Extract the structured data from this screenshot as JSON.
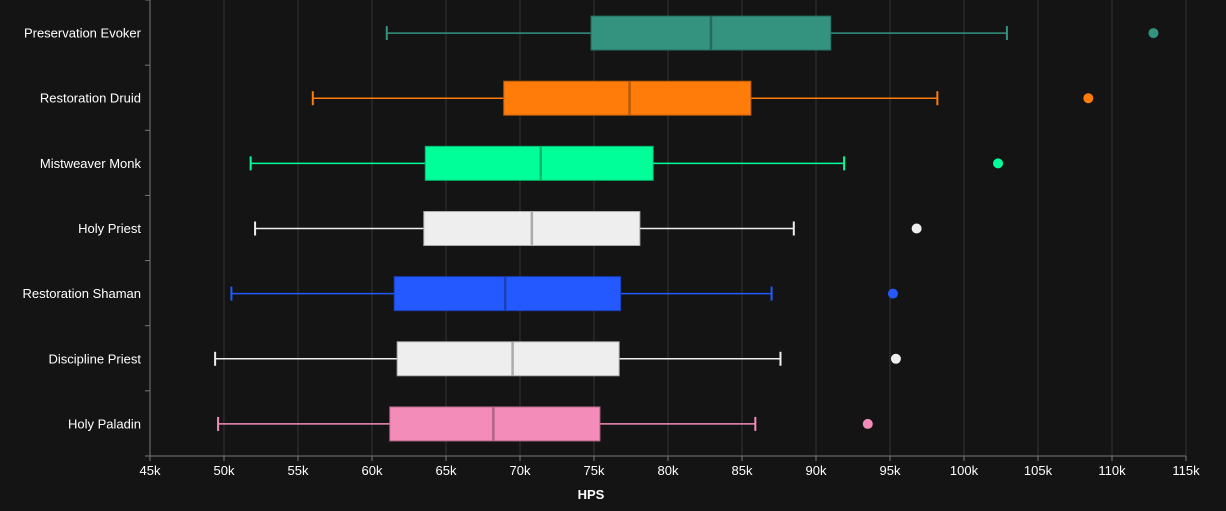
{
  "chart_data": {
    "type": "box",
    "title": "",
    "xlabel": "HPS",
    "ylabel": "",
    "xlim": [
      45000,
      115000
    ],
    "x_ticks": [
      {
        "value": 45000,
        "label": "45k"
      },
      {
        "value": 50000,
        "label": "50k"
      },
      {
        "value": 55000,
        "label": "55k"
      },
      {
        "value": 60000,
        "label": "60k"
      },
      {
        "value": 65000,
        "label": "65k"
      },
      {
        "value": 70000,
        "label": "70k"
      },
      {
        "value": 75000,
        "label": "75k"
      },
      {
        "value": 80000,
        "label": "80k"
      },
      {
        "value": 85000,
        "label": "85k"
      },
      {
        "value": 90000,
        "label": "90k"
      },
      {
        "value": 95000,
        "label": "95k"
      },
      {
        "value": 100000,
        "label": "100k"
      },
      {
        "value": 105000,
        "label": "105k"
      },
      {
        "value": 110000,
        "label": "110k"
      },
      {
        "value": 115000,
        "label": "115k"
      }
    ],
    "grid": true,
    "series": [
      {
        "name": "Preservation Evoker",
        "color": "#33937f",
        "whisker_low": 61000,
        "q1": 74800,
        "median": 82900,
        "q3": 91000,
        "whisker_high": 102900,
        "outlier": 112800
      },
      {
        "name": "Restoration Druid",
        "color": "#ff7c0a",
        "whisker_low": 56000,
        "q1": 68900,
        "median": 77400,
        "q3": 85600,
        "whisker_high": 98200,
        "outlier": 108400
      },
      {
        "name": "Mistweaver Monk",
        "color": "#00ff98",
        "whisker_low": 51800,
        "q1": 63600,
        "median": 71400,
        "q3": 79000,
        "whisker_high": 91900,
        "outlier": 102300
      },
      {
        "name": "Holy Priest",
        "color": "#eeeeee",
        "whisker_low": 52100,
        "q1": 63500,
        "median": 70800,
        "q3": 78100,
        "whisker_high": 88500,
        "outlier": 96800
      },
      {
        "name": "Restoration Shaman",
        "color": "#2359ff",
        "whisker_low": 50500,
        "q1": 61500,
        "median": 69000,
        "q3": 76800,
        "whisker_high": 87000,
        "outlier": 95200
      },
      {
        "name": "Discipline Priest",
        "color": "#eeeeee",
        "whisker_low": 49400,
        "q1": 61700,
        "median": 69500,
        "q3": 76700,
        "whisker_high": 87600,
        "outlier": 95400
      },
      {
        "name": "Holy Paladin",
        "color": "#f48cba",
        "whisker_low": 49600,
        "q1": 61200,
        "median": 68200,
        "q3": 75400,
        "whisker_high": 85900,
        "outlier": 93500
      }
    ]
  }
}
